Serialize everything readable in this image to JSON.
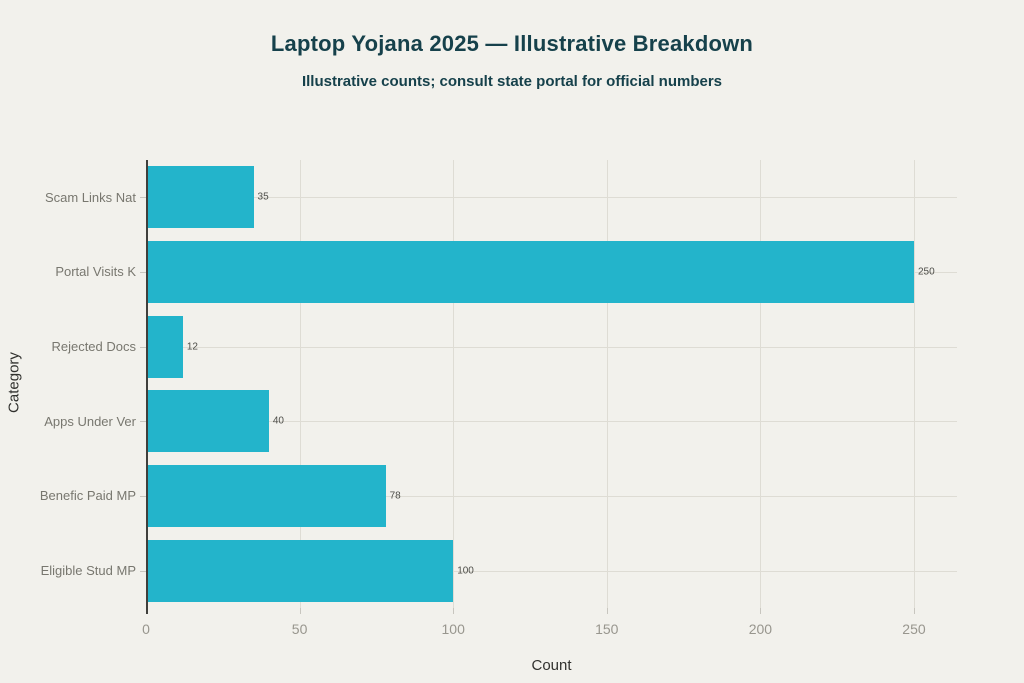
{
  "chart_data": {
    "type": "bar",
    "orientation": "horizontal",
    "title": "Laptop Yojana 2025 — Illustrative Breakdown",
    "subtitle": "Illustrative counts; consult state portal for official numbers",
    "categories": [
      "Scam Links Nat",
      "Portal Visits K",
      "Rejected Docs",
      "Apps Under Ver",
      "Benefic Paid MP",
      "Eligible Stud MP"
    ],
    "values": [
      35,
      250,
      12,
      40,
      78,
      100
    ],
    "value_labels": [
      "35",
      "250",
      "12",
      "40",
      "78",
      "100"
    ],
    "xlabel": "Count",
    "ylabel": "Category",
    "xticks": [
      0,
      50,
      100,
      150,
      200,
      250
    ],
    "xlim": [
      0,
      264
    ],
    "grid": true,
    "legend": false,
    "colors": {
      "bar": "#23b4cb",
      "background": "#f2f1ec",
      "title": "#16414b",
      "grid": "#dedcd4",
      "axis": "#3f3f3c",
      "tick_label": "#98968e",
      "category_label": "#78776f",
      "value_label": "#4d4d48"
    }
  }
}
